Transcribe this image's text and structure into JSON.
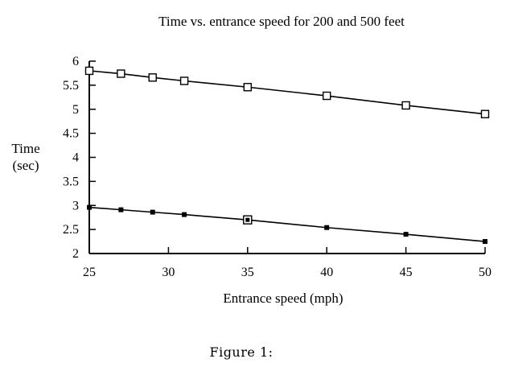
{
  "caption": "Figure 1:",
  "chart_data": {
    "type": "line",
    "title": "Time vs. entrance speed for 200 and 500 feet",
    "xlabel": "Entrance speed (mph)",
    "ylabel": [
      "Time",
      "(sec)"
    ],
    "xlim": [
      25,
      50
    ],
    "ylim": [
      2,
      6
    ],
    "x_ticks": [
      25,
      30,
      35,
      40,
      45,
      50
    ],
    "y_ticks": [
      2,
      2.5,
      3,
      3.5,
      4,
      4.5,
      5,
      5.5,
      6
    ],
    "grid": false,
    "legend": "none",
    "series": [
      {
        "marker": "open-square",
        "points": [
          [
            25,
            5.8
          ],
          [
            27,
            5.74
          ],
          [
            29,
            5.66
          ],
          [
            31,
            5.59
          ],
          [
            35,
            5.46
          ],
          [
            40,
            5.28
          ],
          [
            45,
            5.08
          ],
          [
            50,
            4.9
          ]
        ]
      },
      {
        "marker": "filled-square",
        "points": [
          [
            25,
            2.96
          ],
          [
            27,
            2.91
          ],
          [
            29,
            2.86
          ],
          [
            31,
            2.81
          ],
          [
            35,
            2.7
          ],
          [
            40,
            2.54
          ],
          [
            45,
            2.4
          ],
          [
            50,
            2.25
          ]
        ]
      }
    ],
    "annotations": [
      {
        "series_index": 1,
        "x": 35,
        "y": 2.7,
        "marker": "open-square-highlight"
      }
    ]
  }
}
